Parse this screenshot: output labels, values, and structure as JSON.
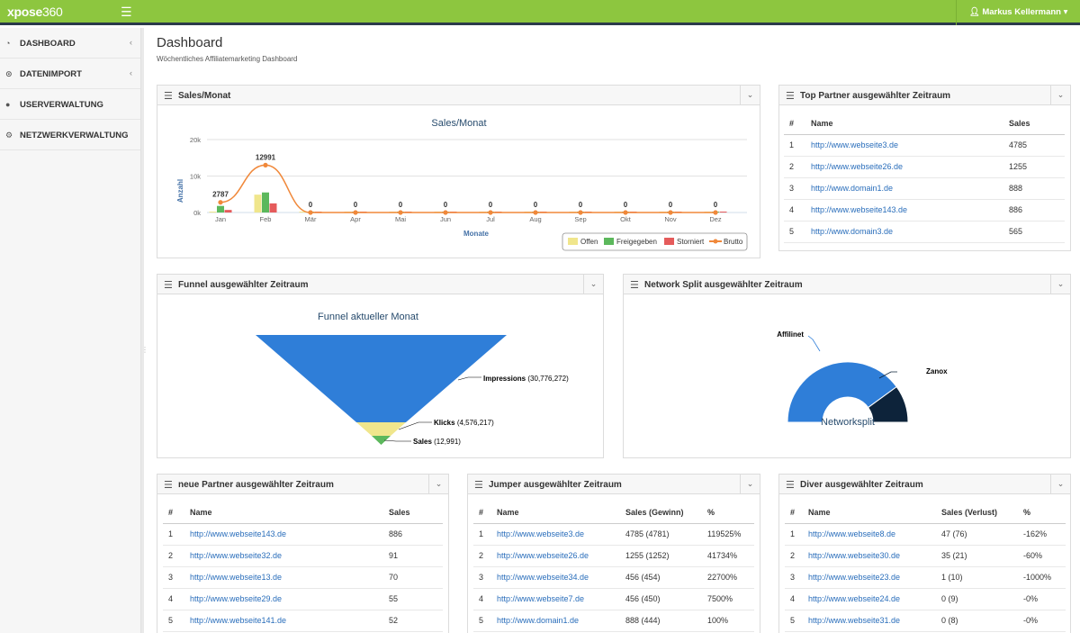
{
  "app": {
    "logo_bold": "xpose",
    "logo_thin": "360",
    "user": "Markus Kellermann"
  },
  "icons": {
    "menu": "hamburger-icon",
    "user": "user-icon",
    "dashboard": "dashboard-icon",
    "import": "import-icon",
    "users": "users-icon",
    "network": "network-icon"
  },
  "sidebar": {
    "items": [
      {
        "label": "DASHBOARD",
        "icon": "dashboard-icon"
      },
      {
        "label": "DATENIMPORT",
        "icon": "import-icon"
      },
      {
        "label": "USERVERWALTUNG",
        "icon": "users-icon"
      },
      {
        "label": "NETZWERKVERWALTUNG",
        "icon": "network-icon"
      }
    ]
  },
  "page": {
    "title": "Dashboard",
    "subtitle": "Wöchentliches Affiliatemarketing Dashboard"
  },
  "colors": {
    "brand": "#8dc63f",
    "offen": "#f0e68c",
    "freigegeben": "#5cb85c",
    "storniert": "#e55b5b",
    "brutto": "#f0883a",
    "blue": "#2f7ed8",
    "navy": "#0d233a",
    "link": "#2a6ebb"
  },
  "panels": {
    "sales": {
      "title": "Sales/Monat",
      "chart_data": {
        "type": "bar",
        "title": "Sales/Monat",
        "xlabel": "Monate",
        "ylabel": "Anzahl",
        "categories": [
          "Jan",
          "Feb",
          "Mär",
          "Apr",
          "Mai",
          "Jun",
          "Jul",
          "Aug",
          "Sep",
          "Okt",
          "Nov",
          "Dez"
        ],
        "yticks": [
          "0k",
          "10k",
          "20k"
        ],
        "ylim": [
          0,
          20000
        ],
        "grid": true,
        "legend": "bottom-right",
        "series": [
          {
            "name": "Offen",
            "type": "bar",
            "values": [
              250,
              4900,
              0,
              0,
              0,
              0,
              0,
              0,
              0,
              0,
              0,
              0
            ]
          },
          {
            "name": "Freigegeben",
            "type": "bar",
            "values": [
              1800,
              5500,
              0,
              0,
              0,
              0,
              0,
              0,
              0,
              0,
              0,
              0
            ]
          },
          {
            "name": "Storniert",
            "type": "bar",
            "values": [
              700,
              2500,
              0,
              0,
              0,
              0,
              0,
              0,
              0,
              0,
              0,
              0
            ]
          },
          {
            "name": "Brutto",
            "type": "line",
            "values": [
              2787,
              12991,
              0,
              0,
              0,
              0,
              0,
              0,
              0,
              0,
              0,
              0
            ]
          }
        ],
        "data_labels": [
          "2787",
          "12991",
          "0",
          "0",
          "0",
          "0",
          "0",
          "0",
          "0",
          "0",
          "0",
          "0"
        ]
      }
    },
    "top": {
      "title": "Top Partner ausgewählter Zeitraum",
      "columns": [
        "#",
        "Name",
        "Sales"
      ],
      "rows": [
        [
          "1",
          "http://www.webseite3.de",
          "4785"
        ],
        [
          "2",
          "http://www.webseite26.de",
          "1255"
        ],
        [
          "3",
          "http://www.domain1.de",
          "888"
        ],
        [
          "4",
          "http://www.webseite143.de",
          "886"
        ],
        [
          "5",
          "http://www.domain3.de",
          "565"
        ]
      ]
    },
    "funnel": {
      "title": "Funnel ausgewählter Zeitraum",
      "chart_data": {
        "type": "funnel",
        "title": "Funnel aktueller Monat",
        "items": [
          {
            "name": "Impressions",
            "value": "(30,776,272)"
          },
          {
            "name": "Klicks",
            "value": "(4,576,217)"
          },
          {
            "name": "Sales",
            "value": "(12,991)"
          }
        ]
      }
    },
    "network": {
      "title": "Network Split ausgewählter Zeitraum",
      "chart_data": {
        "type": "pie",
        "title": "Networksplit",
        "slices": [
          {
            "name": "Affilinet",
            "value": 80
          },
          {
            "name": "Zanox",
            "value": 20
          }
        ]
      }
    },
    "neue": {
      "title": "neue Partner ausgewählter Zeitraum",
      "columns": [
        "#",
        "Name",
        "Sales"
      ],
      "rows": [
        [
          "1",
          "http://www.webseite143.de",
          "886"
        ],
        [
          "2",
          "http://www.webseite32.de",
          "91"
        ],
        [
          "3",
          "http://www.webseite13.de",
          "70"
        ],
        [
          "4",
          "http://www.webseite29.de",
          "55"
        ],
        [
          "5",
          "http://www.webseite141.de",
          "52"
        ]
      ]
    },
    "jumper": {
      "title": "Jumper ausgewählter Zeitraum",
      "columns": [
        "#",
        "Name",
        "Sales (Gewinn)",
        "%"
      ],
      "rows": [
        [
          "1",
          "http://www.webseite3.de",
          "4785 (4781)",
          "119525%"
        ],
        [
          "2",
          "http://www.webseite26.de",
          "1255 (1252)",
          "41734%"
        ],
        [
          "3",
          "http://www.webseite34.de",
          "456 (454)",
          "22700%"
        ],
        [
          "4",
          "http://www.webseite7.de",
          "456 (450)",
          "7500%"
        ],
        [
          "5",
          "http://www.domain1.de",
          "888 (444)",
          "100%"
        ]
      ]
    },
    "diver": {
      "title": "Diver ausgewählter Zeitraum",
      "columns": [
        "#",
        "Name",
        "Sales (Verlust)",
        "%"
      ],
      "rows": [
        [
          "1",
          "http://www.webseite8.de",
          "47 (76)",
          "-162%"
        ],
        [
          "2",
          "http://www.webseite30.de",
          "35 (21)",
          "-60%"
        ],
        [
          "3",
          "http://www.webseite23.de",
          "1 (10)",
          "-1000%"
        ],
        [
          "4",
          "http://www.webseite24.de",
          "0 (9)",
          "-0%"
        ],
        [
          "5",
          "http://www.webseite31.de",
          "0 (8)",
          "-0%"
        ]
      ]
    }
  }
}
